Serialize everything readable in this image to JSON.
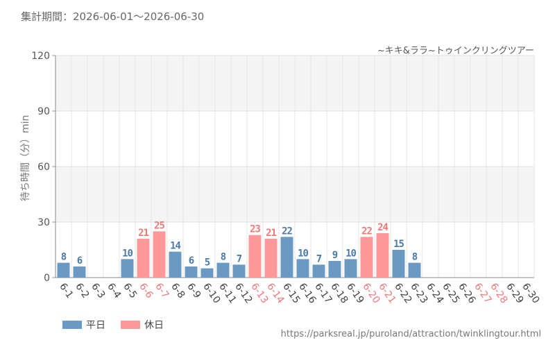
{
  "period": "集計期間：2026-06-01～2026-06-30",
  "subtitle": "~キキ&ララ~トゥインクリングツアー",
  "source": "https://parksreal.jp/puroland/attraction/twinklingtour.html",
  "colors": {
    "weekday": "#6a9ac4",
    "holiday": "#ff9999",
    "holiday_text": "#f07878",
    "weekday_text": "#4a7aa8"
  },
  "chart_data": {
    "type": "bar",
    "ylabel": "待ち時間（分）min",
    "ylim": [
      0,
      120
    ],
    "yticks": [
      0,
      30,
      60,
      90,
      120
    ],
    "grid": true,
    "legend": [
      {
        "name": "平日",
        "color": "#6a9ac4"
      },
      {
        "name": "休日",
        "color": "#ff9999"
      }
    ],
    "categories": [
      "6-1",
      "6-2",
      "6-3",
      "6-4",
      "6-5",
      "6-6",
      "6-7",
      "6-8",
      "6-9",
      "6-10",
      "6-11",
      "6-12",
      "6-13",
      "6-14",
      "6-15",
      "6-16",
      "6-17",
      "6-18",
      "6-19",
      "6-20",
      "6-21",
      "6-22",
      "6-23",
      "6-24",
      "6-25",
      "6-26",
      "6-27",
      "6-28",
      "6-29",
      "6-30"
    ],
    "holiday": [
      false,
      false,
      false,
      false,
      false,
      true,
      true,
      false,
      false,
      false,
      false,
      false,
      true,
      true,
      false,
      false,
      false,
      false,
      false,
      true,
      true,
      false,
      false,
      false,
      false,
      false,
      true,
      true,
      false,
      false
    ],
    "values": [
      8,
      6,
      null,
      null,
      10,
      21,
      25,
      14,
      6,
      5,
      8,
      7,
      23,
      21,
      22,
      10,
      7,
      9,
      10,
      22,
      24,
      15,
      8,
      null,
      null,
      null,
      null,
      null,
      null,
      null
    ]
  }
}
